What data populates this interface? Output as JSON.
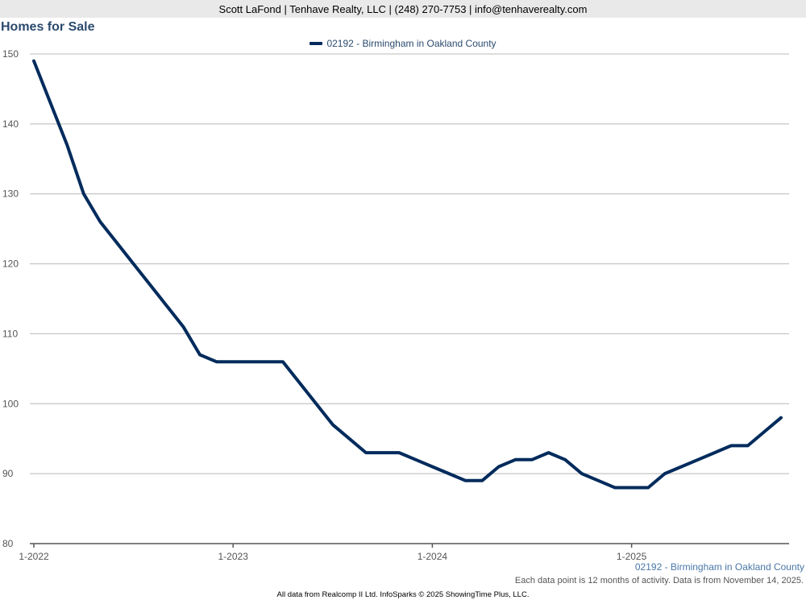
{
  "header": {
    "contact": "Scott LaFond | Tenhave Realty, LLC | (248) 270-7753 | info@tenhaverealty.com"
  },
  "chart_data": {
    "type": "line",
    "title": "Homes for Sale",
    "xlabel": "",
    "ylabel": "",
    "ylim": [
      80,
      150
    ],
    "yticks": [
      "80",
      "90",
      "100",
      "110",
      "120",
      "130",
      "140",
      "150"
    ],
    "xticks": [
      "1-2022",
      "1-2023",
      "1-2024",
      "1-2025"
    ],
    "grid": true,
    "legend_position": "top-center",
    "series": [
      {
        "name": "02192 - Birmingham in Oakland County",
        "color": "#002b5c",
        "values": [
          149,
          143,
          137,
          130,
          126,
          123,
          120,
          117,
          114,
          111,
          107,
          106,
          106,
          106,
          106,
          106,
          103,
          100,
          97,
          95,
          93,
          93,
          93,
          92,
          91,
          90,
          89,
          89,
          91,
          92,
          92,
          93,
          92,
          90,
          89,
          88,
          88,
          88,
          90,
          91,
          92,
          93,
          94,
          94,
          96,
          98
        ]
      }
    ],
    "series_caption": "02192 - Birmingham in Oakland County",
    "note": "Each data point is 12 months of activity. Data is from November 14, 2025."
  },
  "footer": {
    "source": "All data from Realcomp II Ltd. InfoSparks © 2025 ShowingTime Plus, LLC."
  }
}
